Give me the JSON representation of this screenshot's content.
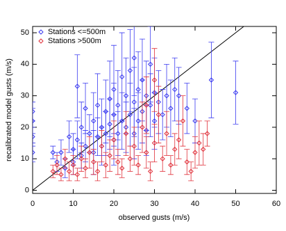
{
  "chart_data": {
    "type": "scatter",
    "xlabel": "observed gusts (m/s)",
    "ylabel": "recalibrated model gusts (m/s)",
    "xlim": [
      0,
      60
    ],
    "ylim": [
      -1,
      52
    ],
    "xticks": [
      0,
      10,
      20,
      30,
      40,
      50,
      60
    ],
    "yticks": [
      0,
      10,
      20,
      30,
      40,
      50
    ],
    "legend": "upper left",
    "series": [
      {
        "name": "Stations <=500m",
        "color": "#3b3bf0",
        "x": [
          0,
          0,
          0,
          0,
          5,
          6,
          7,
          8,
          9,
          10,
          10,
          11,
          11,
          12,
          12,
          13,
          13,
          14,
          15,
          15,
          16,
          16,
          17,
          17,
          18,
          18,
          19,
          19,
          20,
          20,
          20,
          21,
          21,
          22,
          22,
          23,
          23,
          24,
          24,
          25,
          25,
          25,
          26,
          26,
          27,
          27,
          28,
          28,
          29,
          29,
          30,
          30,
          31,
          32,
          33,
          34,
          35,
          36,
          38,
          40,
          44,
          50
        ],
        "values": [
          12,
          17,
          22,
          25,
          12,
          9,
          12,
          7,
          17,
          9,
          13,
          16,
          33,
          11,
          20,
          14,
          26,
          18,
          12,
          22,
          17,
          27,
          14,
          20,
          18,
          25,
          21,
          29,
          16,
          24,
          32,
          18,
          27,
          22,
          36,
          20,
          30,
          24,
          38,
          18,
          28,
          42,
          22,
          32,
          25,
          35,
          19,
          30,
          27,
          40,
          22,
          31,
          28,
          24,
          30,
          26,
          32,
          30,
          26,
          22,
          35,
          31
        ],
        "errors": [
          3,
          3,
          4,
          3,
          2,
          3,
          4,
          3,
          5,
          4,
          5,
          6,
          10,
          4,
          8,
          5,
          8,
          6,
          7,
          9,
          6,
          10,
          6,
          9,
          7,
          10,
          8,
          12,
          8,
          10,
          14,
          7,
          11,
          9,
          14,
          8,
          12,
          10,
          13,
          8,
          11,
          12,
          9,
          12,
          10,
          13,
          8,
          11,
          10,
          12,
          9,
          11,
          10,
          8,
          10,
          9,
          10,
          9,
          8,
          7,
          12,
          10
        ]
      },
      {
        "name": "Stations >500m",
        "color": "#e0303a",
        "x": [
          5,
          6,
          7,
          8,
          9,
          10,
          11,
          12,
          13,
          14,
          15,
          16,
          17,
          18,
          19,
          20,
          21,
          22,
          23,
          24,
          25,
          26,
          27,
          28,
          28,
          29,
          30,
          30,
          31,
          32,
          33,
          34,
          35,
          36,
          37,
          38,
          39,
          40,
          41,
          42,
          43
        ],
        "values": [
          6,
          8,
          5,
          10,
          6,
          8,
          5,
          10,
          7,
          12,
          9,
          6,
          14,
          8,
          11,
          16,
          9,
          7,
          18,
          10,
          14,
          8,
          20,
          12,
          27,
          6,
          15,
          35,
          24,
          10,
          18,
          8,
          13,
          16,
          22,
          9,
          6,
          12,
          15,
          13,
          18
        ],
        "errors": [
          2,
          3,
          2,
          3,
          3,
          3,
          2,
          4,
          3,
          5,
          4,
          3,
          5,
          4,
          5,
          6,
          4,
          3,
          7,
          4,
          6,
          3,
          8,
          5,
          9,
          3,
          6,
          10,
          9,
          4,
          7,
          3,
          5,
          6,
          8,
          4,
          3,
          5,
          7,
          5,
          4
        ]
      }
    ]
  }
}
